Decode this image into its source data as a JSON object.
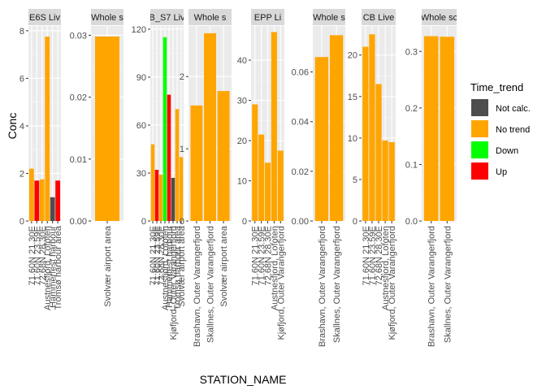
{
  "chart_data": {
    "type": "bar",
    "xlabel": "STATION_NAME",
    "ylabel": "Conc",
    "legend": {
      "title": "Time_trend",
      "position": "right",
      "entries": [
        {
          "label": "Not calc.",
          "color": "#4d4d4d"
        },
        {
          "label": "No trend",
          "color": "#ffa500"
        },
        {
          "label": "Down",
          "color": "#00ff00"
        },
        {
          "label": "Up",
          "color": "#ff0000"
        }
      ]
    },
    "panels": [
      {
        "strip": "E6S Liv",
        "ylim": [
          0,
          8.2
        ],
        "yticks": [
          0,
          2,
          4,
          6,
          8
        ],
        "ytick_labels": [
          "0",
          "2",
          "4",
          "6",
          "8"
        ],
        "categories": [
          "71.60N 21.30E",
          "71.60N 23.59E",
          "72.68N 28.30E",
          "Austnesfjord, Lofoten",
          "Hammerfest harbour",
          "Tromsø harbour area"
        ],
        "bars": [
          {
            "value": 2.2,
            "trend": "No trend"
          },
          {
            "value": 1.7,
            "trend": "Up"
          },
          {
            "value": 1.75,
            "trend": "No trend"
          },
          {
            "value": 7.75,
            "trend": "No trend"
          },
          {
            "value": 1.0,
            "trend": "Not calc."
          },
          {
            "value": 1.7,
            "trend": "Up"
          }
        ]
      },
      {
        "strip": "Whole s",
        "ylim": [
          0,
          0.0315
        ],
        "yticks": [
          0,
          0.01,
          0.02,
          0.03
        ],
        "ytick_labels": [
          "0.00",
          "0.01",
          "0.02",
          "0.03"
        ],
        "categories": [
          "Svolvær airport area"
        ],
        "bars": [
          {
            "value": 0.0298,
            "trend": "No trend"
          }
        ]
      },
      {
        "strip": "B_S7 Liv",
        "ylim": [
          0,
          122
        ],
        "yticks": [
          0,
          30,
          60,
          90,
          120
        ],
        "ytick_labels": [
          "0",
          "30",
          "60",
          "90",
          "120"
        ],
        "categories": [
          "71.60N 21.30E",
          "71.60N 23.59E",
          "72.68N 28.30E",
          "Austnesfjord, Lofoten",
          "Hammerfest harbour",
          "Kjøfjord, Outer Varangerfjord",
          "Tromsø harbour area",
          "Svolvær airport area"
        ],
        "bars": [
          {
            "value": 48,
            "trend": "No trend"
          },
          {
            "value": 32,
            "trend": "Up"
          },
          {
            "value": 29,
            "trend": "No trend"
          },
          {
            "value": 115,
            "trend": "Down"
          },
          {
            "value": 79,
            "trend": "Up"
          },
          {
            "value": 27,
            "trend": "Not calc."
          },
          {
            "value": 70,
            "trend": "No trend"
          },
          {
            "value": 40,
            "trend": "No trend"
          }
        ]
      },
      {
        "strip": "Whole s",
        "ylim": [
          0,
          2.7
        ],
        "yticks": [
          0,
          1,
          2
        ],
        "ytick_labels": [
          "0",
          "1",
          "2"
        ],
        "categories": [
          "Brashavn, Outer Varangerfjord",
          "Skallnes, Outer Varangerfjord",
          "Svolvær airport area"
        ],
        "bars": [
          {
            "value": 1.6,
            "trend": "No trend"
          },
          {
            "value": 2.6,
            "trend": "No trend"
          },
          {
            "value": 1.8,
            "trend": "No trend"
          }
        ]
      },
      {
        "strip": "EPP Li",
        "ylim": [
          0,
          48.5
        ],
        "yticks": [
          0,
          10,
          20,
          30,
          40
        ],
        "ytick_labels": [
          "0",
          "10",
          "20",
          "30",
          "40"
        ],
        "categories": [
          "71.60N 21.30E",
          "71.60N 23.59E",
          "72.68N 28.30E",
          "Austnesfjord, Lofoten",
          "Kjøfjord, Outer Varangerfjord"
        ],
        "bars": [
          {
            "value": 29,
            "trend": "No trend"
          },
          {
            "value": 21.5,
            "trend": "No trend"
          },
          {
            "value": 14.5,
            "trend": "No trend"
          },
          {
            "value": 47,
            "trend": "No trend"
          },
          {
            "value": 17.5,
            "trend": "No trend"
          }
        ]
      },
      {
        "strip": "Whole s",
        "ylim": [
          0,
          0.0785
        ],
        "yticks": [
          0,
          0.02,
          0.04,
          0.06
        ],
        "ytick_labels": [
          "0.00",
          "0.02",
          "0.04",
          "0.06"
        ],
        "categories": [
          "Brashavn, Outer Varangerfjord",
          "Skallnes, Outer Varangerfjord"
        ],
        "bars": [
          {
            "value": 0.066,
            "trend": "No trend"
          },
          {
            "value": 0.0748,
            "trend": "No trend"
          }
        ]
      },
      {
        "strip": "CB Live",
        "ylim": [
          0,
          23.5
        ],
        "yticks": [
          0,
          5,
          10,
          15,
          20
        ],
        "ytick_labels": [
          "0",
          "5",
          "10",
          "15",
          "20"
        ],
        "categories": [
          "71.60N 21.30E",
          "71.60N 23.59E",
          "72.68N 28.30E",
          "Austnesfjord, Lofoten",
          "Kjøfjord, Outer Varangerfjord"
        ],
        "bars": [
          {
            "value": 21,
            "trend": "No trend"
          },
          {
            "value": 22.5,
            "trend": "No trend"
          },
          {
            "value": 16.5,
            "trend": "No trend"
          },
          {
            "value": 9.7,
            "trend": "No trend"
          },
          {
            "value": 9.5,
            "trend": "No trend"
          }
        ]
      },
      {
        "strip": "Whole sc",
        "ylim": [
          0,
          0.345
        ],
        "yticks": [
          0,
          0.1,
          0.2,
          0.3
        ],
        "ytick_labels": [
          "0.0",
          "0.1",
          "0.2",
          "0.3"
        ],
        "categories": [
          "Brashavn, Outer Varangerfjord",
          "Skallnes, Outer Varangerfjord"
        ],
        "bars": [
          {
            "value": 0.327,
            "trend": "No trend"
          },
          {
            "value": 0.326,
            "trend": "No trend"
          }
        ]
      }
    ]
  }
}
